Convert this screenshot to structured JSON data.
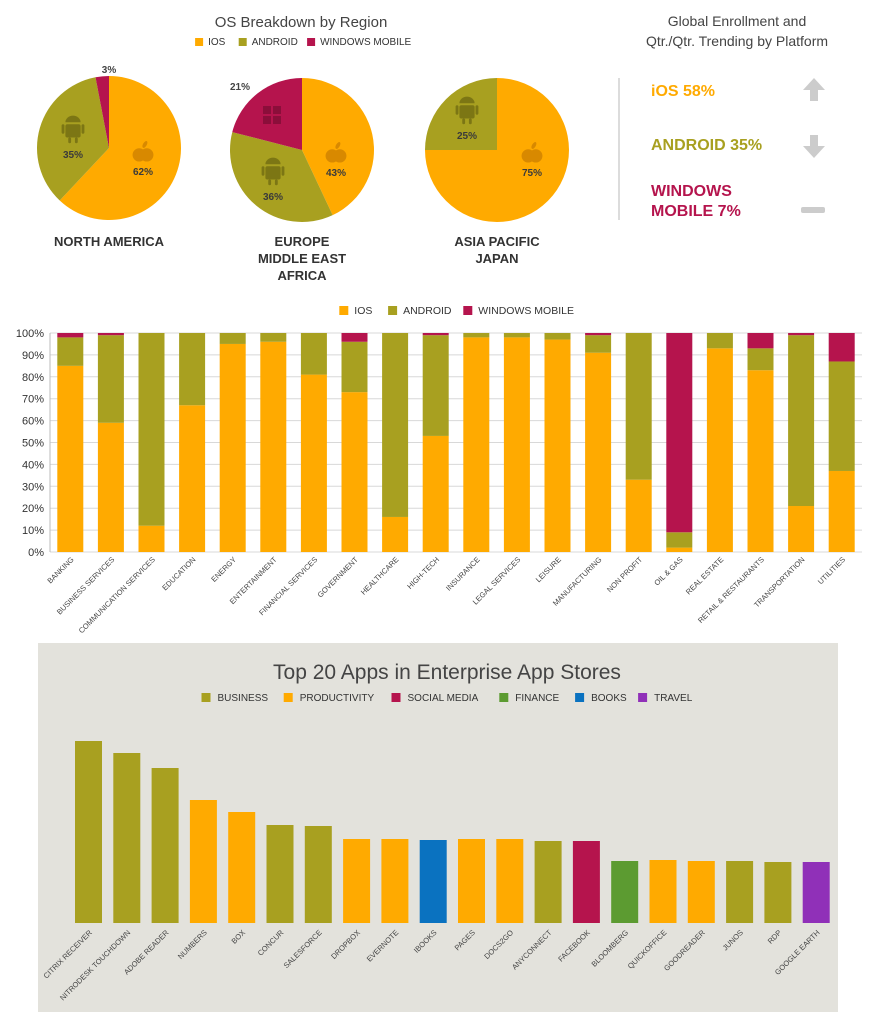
{
  "colors": {
    "ios": "#ffaa00",
    "android": "#a8a020",
    "windows_mobile": "#b5144d",
    "business": "#a8a020",
    "productivity": "#ffaa00",
    "social_media": "#b5144d",
    "finance": "#5c9b31",
    "books": "#0a72c0",
    "travel": "#9030b8",
    "up_arrow": "#cccccc"
  },
  "pie_section": {
    "title": "OS Breakdown by Region",
    "legend": [
      "IOS",
      "ANDROID",
      "WINDOWS MOBILE"
    ]
  },
  "trend_panel": {
    "title_line1": "Global Enrollment and",
    "title_line2": "Qtr./Qtr. Trending by Platform",
    "rows": [
      {
        "label": "iOS 58%",
        "trend": "up",
        "color": "#ffaa00"
      },
      {
        "label": "ANDROID 35%",
        "trend": "down",
        "color": "#a8a020"
      },
      {
        "label_line1": "WINDOWS",
        "label_line2": "MOBILE 7%",
        "trend": "flat",
        "color": "#b5144d"
      }
    ]
  },
  "stack_legend": [
    "IOS",
    "ANDROID",
    "WINDOWS MOBILE"
  ],
  "apps_section": {
    "title": "Top 20 Apps in Enterprise App Stores",
    "legend": [
      "BUSINESS",
      "PRODUCTIVITY",
      "SOCIAL MEDIA",
      "FINANCE",
      "BOOKS",
      "TRAVEL"
    ]
  },
  "chart_data": [
    {
      "type": "pie",
      "title": "OS Breakdown by Region",
      "charts": [
        {
          "label": "NORTH AMERICA",
          "slices": [
            {
              "name": "IOS",
              "value": 62
            },
            {
              "name": "ANDROID",
              "value": 35
            },
            {
              "name": "WINDOWS MOBILE",
              "value": 3
            }
          ]
        },
        {
          "label": "EUROPE MIDDLE EAST AFRICA",
          "label_lines": [
            "EUROPE",
            "MIDDLE EAST",
            "AFRICA"
          ],
          "slices": [
            {
              "name": "IOS",
              "value": 43
            },
            {
              "name": "ANDROID",
              "value": 36
            },
            {
              "name": "WINDOWS MOBILE",
              "value": 21
            }
          ]
        },
        {
          "label": "ASIA PACIFIC JAPAN",
          "label_lines": [
            "ASIA PACIFIC",
            "JAPAN"
          ],
          "slices": [
            {
              "name": "IOS",
              "value": 75
            },
            {
              "name": "ANDROID",
              "value": 25
            }
          ]
        }
      ]
    },
    {
      "type": "bar",
      "stacked": true,
      "legend_placement": "top",
      "ylim": [
        0,
        100
      ],
      "yticks": [
        "0%",
        "10%",
        "20%",
        "30%",
        "40%",
        "50%",
        "60%",
        "70%",
        "80%",
        "90%",
        "100%"
      ],
      "categories": [
        "BANKING",
        "BUSINESS SERVICES",
        "COMMUNICATION SERVICES",
        "EDUCATION",
        "ENERGY",
        "ENTERTAINMENT",
        "FINANCIAL SERVICES",
        "GOVERNMENT",
        "HEALTHCARE",
        "HIGH-TECH",
        "INSURANCE",
        "LEGAL SERVICES",
        "LEISURE",
        "MANUFACTURING",
        "NON PROFIT",
        "OIL & GAS",
        "REAL ESTATE",
        "RETAIL & RESTAURANTS",
        "TRANSPORTATION",
        "UTILITIES"
      ],
      "series": [
        {
          "name": "IOS",
          "values": [
            85,
            59,
            12,
            67,
            95,
            96,
            81,
            73,
            16,
            53,
            98,
            98,
            97,
            91,
            33,
            2,
            93,
            83,
            21,
            37
          ]
        },
        {
          "name": "ANDROID",
          "values": [
            13,
            40,
            88,
            33,
            5,
            4,
            19,
            23,
            84,
            46,
            2,
            2,
            3,
            8,
            67,
            7,
            7,
            10,
            78,
            50
          ]
        },
        {
          "name": "WINDOWS MOBILE",
          "values": [
            2,
            1,
            0,
            0,
            0,
            0,
            0,
            4,
            0,
            1,
            0,
            0,
            0,
            1,
            0,
            91,
            0,
            7,
            1,
            13
          ]
        }
      ]
    },
    {
      "type": "bar",
      "title": "Top 20 Apps in Enterprise App Stores",
      "legend_placement": "top",
      "axis_ticks": "none",
      "categories": [
        "CITRIX RECEIVER",
        "NITRODESK TOUCHDOWN",
        "ADOBE READER",
        "NUMBERS",
        "BOX",
        "CONCUR",
        "SALESFORCE",
        "DROPBOX",
        "EVERNOTE",
        "IBOOKS",
        "PAGES",
        "DOCS2GO",
        "ANYCONNECT",
        "FACEBOOK",
        "BLOOMBERG",
        "QUICKOFFICE",
        "GOODREADER",
        "JUNOS",
        "RDP",
        "GOOGLE EARTH"
      ],
      "values": [
        182,
        170,
        155,
        123,
        111,
        98,
        97,
        84,
        84,
        83,
        84,
        84,
        82,
        82,
        62,
        63,
        62,
        62,
        61,
        61
      ],
      "groups": [
        "BUSINESS",
        "BUSINESS",
        "BUSINESS",
        "PRODUCTIVITY",
        "PRODUCTIVITY",
        "BUSINESS",
        "BUSINESS",
        "PRODUCTIVITY",
        "PRODUCTIVITY",
        "BOOKS",
        "PRODUCTIVITY",
        "PRODUCTIVITY",
        "BUSINESS",
        "SOCIAL MEDIA",
        "FINANCE",
        "PRODUCTIVITY",
        "PRODUCTIVITY",
        "BUSINESS",
        "BUSINESS",
        "TRAVEL"
      ]
    }
  ]
}
